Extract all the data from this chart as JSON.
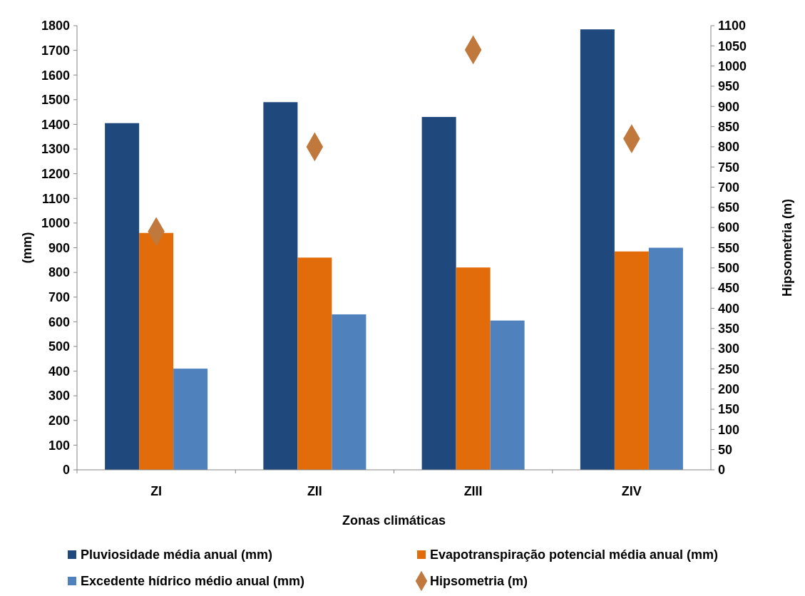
{
  "chart_data": {
    "type": "bar",
    "xlabel": "Zonas climáticas",
    "ylabel": "(mm)",
    "y2label": "Hipsometria (m)",
    "categories": [
      "ZI",
      "ZII",
      "ZIII",
      "ZIV"
    ],
    "series": [
      {
        "name": "Pluviosidade média anual (mm)",
        "color": "#1f497d",
        "values": [
          1405,
          1490,
          1430,
          1785
        ]
      },
      {
        "name": "Evapotranspiração potencial média anual (mm)",
        "color": "#e36c0a",
        "values": [
          960,
          860,
          820,
          885
        ]
      },
      {
        "name": "Excedente hídrico médio anual (mm)",
        "color": "#4f81bd",
        "values": [
          410,
          630,
          605,
          900
        ]
      },
      {
        "name": "Hipsometria (m)",
        "type": "scatter",
        "marker": "diamond",
        "axis": "y2",
        "color": "#c0783c",
        "values": [
          590,
          800,
          1040,
          820
        ]
      }
    ],
    "ylim": [
      0,
      1800
    ],
    "yticks": [
      0,
      100,
      200,
      300,
      400,
      500,
      600,
      700,
      800,
      900,
      1000,
      1100,
      1200,
      1300,
      1400,
      1500,
      1600,
      1700,
      1800
    ],
    "y2lim": [
      0,
      1100
    ],
    "y2ticks": [
      0,
      50,
      100,
      150,
      200,
      250,
      300,
      350,
      400,
      450,
      500,
      550,
      600,
      650,
      700,
      750,
      800,
      850,
      900,
      950,
      1000,
      1050,
      1100
    ],
    "grid": false,
    "legend": "bottom"
  }
}
